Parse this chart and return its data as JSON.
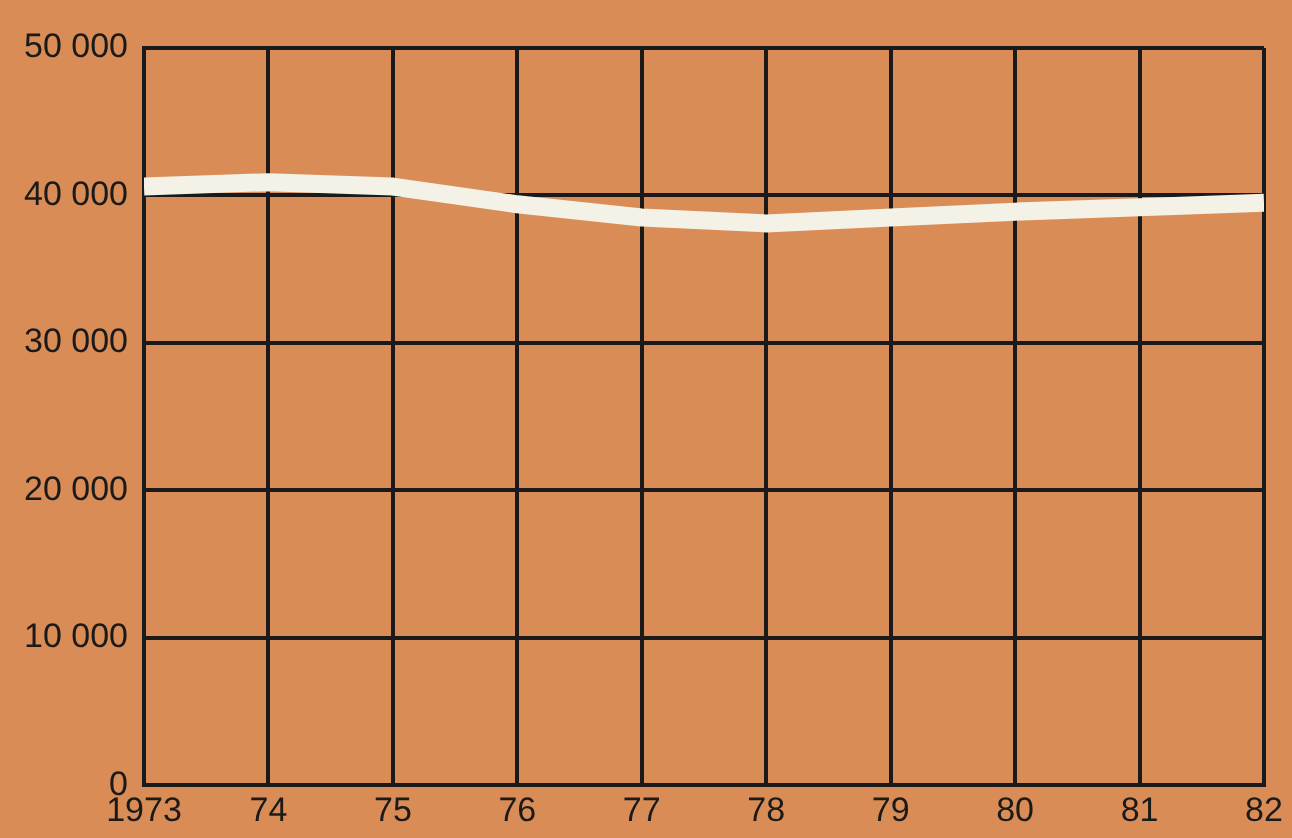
{
  "chart_data": {
    "type": "line",
    "x": [
      1973,
      1974,
      1975,
      1976,
      1977,
      1978,
      1979,
      1980,
      1981,
      1982
    ],
    "series": [
      {
        "color": "#f4f1e6",
        "values": [
          40600,
          40900,
          40600,
          39400,
          38500,
          38100,
          38500,
          38900,
          39200,
          39500
        ]
      }
    ],
    "xlim": [
      1973,
      1982
    ],
    "xticks": [
      {
        "value": 1973,
        "label": "1973"
      },
      {
        "value": 1974,
        "label": "74"
      },
      {
        "value": 1975,
        "label": "75"
      },
      {
        "value": 1976,
        "label": "76"
      },
      {
        "value": 1977,
        "label": "77"
      },
      {
        "value": 1978,
        "label": "78"
      },
      {
        "value": 1979,
        "label": "79"
      },
      {
        "value": 1980,
        "label": "80"
      },
      {
        "value": 1981,
        "label": "81"
      },
      {
        "value": 1982,
        "label": "82"
      }
    ],
    "ylim": [
      0,
      50000
    ],
    "yticks": [
      {
        "value": 0,
        "label": "0"
      },
      {
        "value": 10000,
        "label": "10 000"
      },
      {
        "value": 20000,
        "label": "20 000"
      },
      {
        "value": 30000,
        "label": "30 000"
      },
      {
        "value": 40000,
        "label": "40 000"
      },
      {
        "value": 50000,
        "label": "50 000"
      }
    ],
    "grid": true,
    "legend": false,
    "marker": "none",
    "line_style": "solid"
  }
}
